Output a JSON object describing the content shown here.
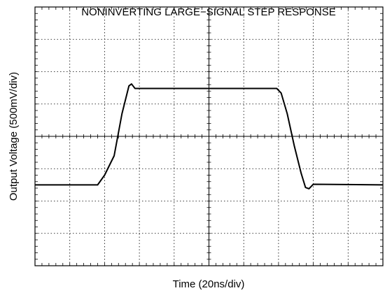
{
  "chart_data": {
    "type": "line",
    "title": "NONINVERTING LARGE−SIGNAL STEP RESPONSE",
    "x_label": "Time (20ns/div)",
    "y_label": "Output Voltage (500mV/div)",
    "xlim": [
      0,
      200
    ],
    "ylim": [
      -2000,
      2000
    ],
    "xticks": [
      0,
      20,
      40,
      60,
      80,
      100,
      120,
      140,
      160,
      180,
      200
    ],
    "yticks": [
      -2000,
      -1500,
      -1000,
      -500,
      0,
      500,
      1000,
      1500,
      2000
    ],
    "grid": true,
    "series": [
      {
        "color": "#000000",
        "x": [
          0,
          36,
          40,
          45.5,
          50,
          54,
          55.5,
          57.5,
          60,
          139,
          141.5,
          145,
          149,
          153,
          155.5,
          157.5,
          160,
          200
        ],
        "values": [
          -750,
          -750,
          -600,
          -300,
          350,
          780,
          810,
          740,
          740,
          740,
          670,
          350,
          -140,
          -570,
          -790,
          -810,
          -740,
          -750
        ]
      }
    ]
  }
}
